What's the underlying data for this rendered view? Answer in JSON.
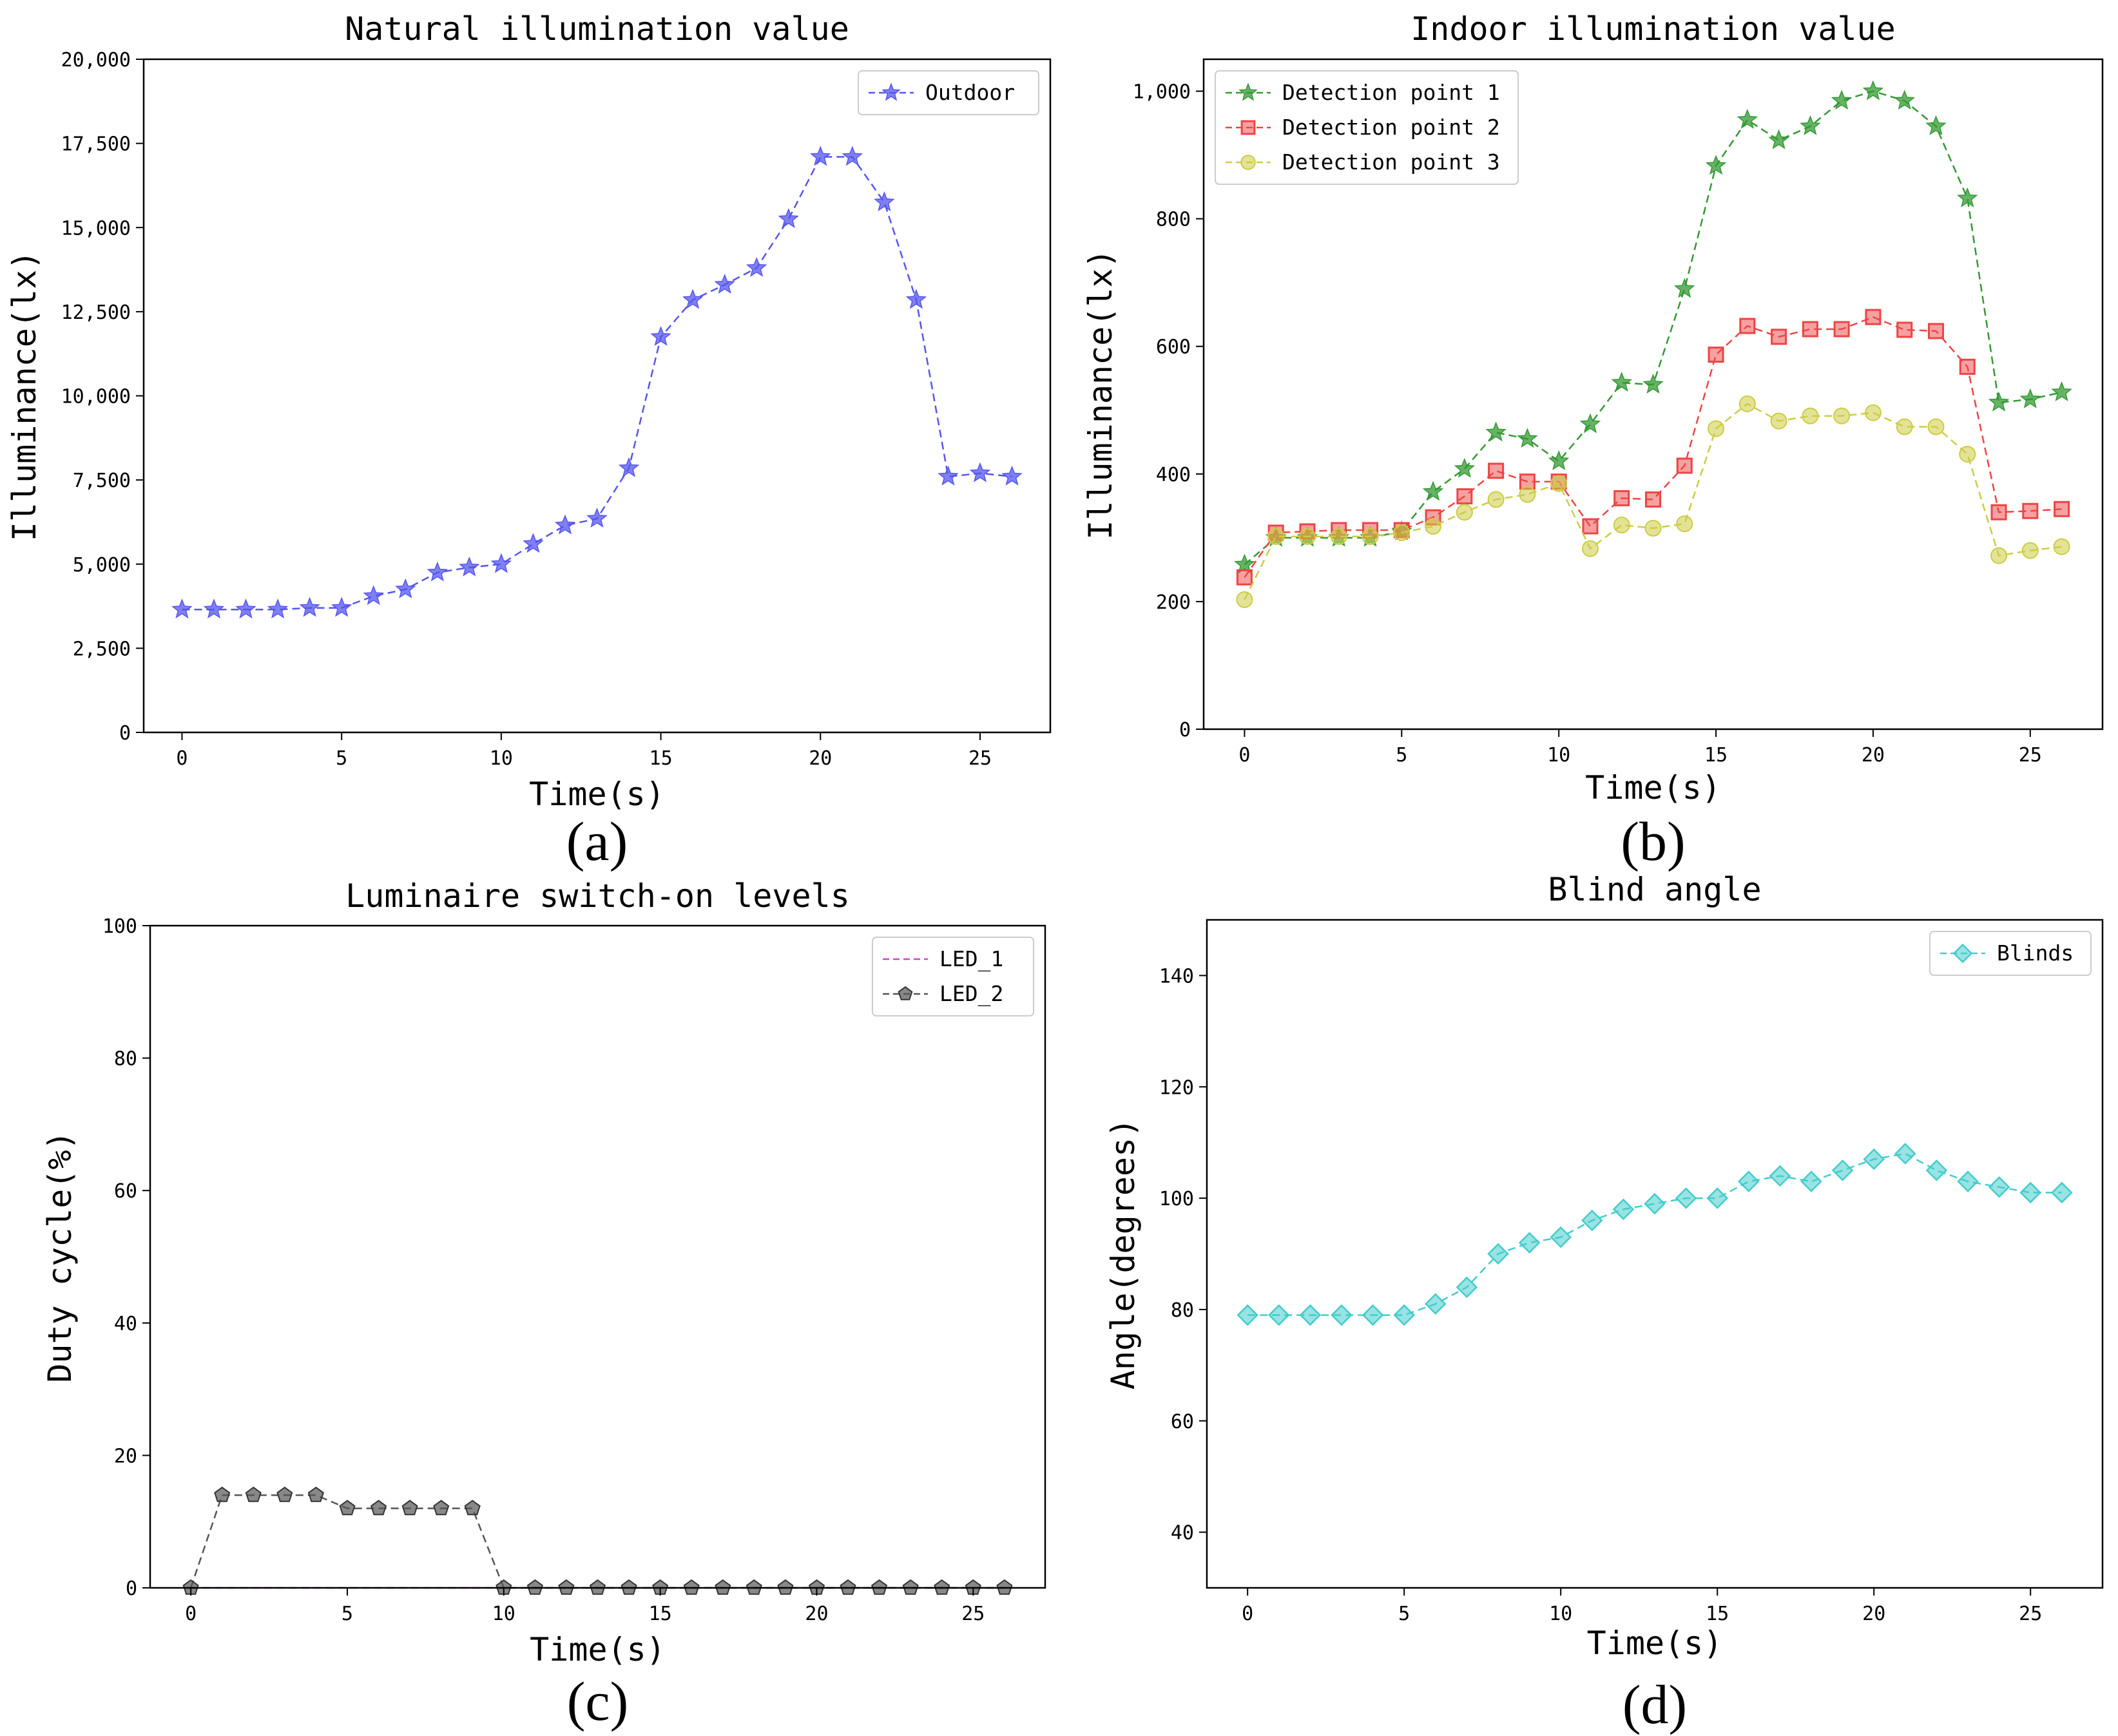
{
  "chart_data": [
    {
      "id": "a",
      "type": "line",
      "title": "Natural illumination value",
      "xlabel": "Time(s)",
      "ylabel": "Illuminance(lx)",
      "panel_label": "(a)",
      "xlim": [
        -1.2,
        27.2
      ],
      "ylim": [
        0,
        20000
      ],
      "xticks": [
        0,
        5,
        10,
        15,
        20,
        25
      ],
      "xtick_labels": [
        "0",
        "5",
        "10",
        "15",
        "20",
        "25"
      ],
      "yticks": [
        0,
        2500,
        5000,
        7500,
        10000,
        12500,
        15000,
        17500,
        20000
      ],
      "ytick_labels": [
        "0",
        "2,500",
        "5,000",
        "7,500",
        "10,000",
        "12,500",
        "15,000",
        "17,500",
        "20,000"
      ],
      "grid": false,
      "legend_position": "top-right",
      "x": [
        0,
        1,
        2,
        3,
        4,
        5,
        6,
        7,
        8,
        9,
        10,
        11,
        12,
        13,
        14,
        15,
        16,
        17,
        18,
        19,
        20,
        21,
        22,
        23,
        24,
        25,
        26
      ],
      "series": [
        {
          "name": "Outdoor",
          "color": "#5555ee",
          "marker": "star",
          "values": [
            3650,
            3650,
            3650,
            3650,
            3700,
            3700,
            4050,
            4250,
            4750,
            4900,
            5000,
            5600,
            6150,
            6350,
            7850,
            11750,
            12850,
            13300,
            13800,
            15250,
            17100,
            17100,
            15750,
            12850,
            7600,
            7700,
            7600
          ]
        }
      ]
    },
    {
      "id": "b",
      "type": "line",
      "title": "Indoor illumination value",
      "xlabel": "Time(s)",
      "ylabel": "Illuminance(lx)",
      "panel_label": "(b)",
      "xlim": [
        -1.3,
        27.3
      ],
      "ylim": [
        0,
        1050
      ],
      "xticks": [
        0,
        5,
        10,
        15,
        20,
        25
      ],
      "xtick_labels": [
        "0",
        "5",
        "10",
        "15",
        "20",
        "25"
      ],
      "yticks": [
        0,
        200,
        400,
        600,
        800,
        1000
      ],
      "ytick_labels": [
        "0",
        "200",
        "400",
        "600",
        "800",
        "1,000"
      ],
      "grid": false,
      "legend_position": "top-left",
      "x": [
        0,
        1,
        2,
        3,
        4,
        5,
        6,
        7,
        8,
        9,
        10,
        11,
        12,
        13,
        14,
        15,
        16,
        17,
        18,
        19,
        20,
        21,
        22,
        23,
        24,
        25,
        26
      ],
      "series": [
        {
          "name": "Detection point 1",
          "color": "#339933",
          "marker": "star",
          "values": [
            258,
            300,
            300,
            300,
            300,
            310,
            372,
            408,
            465,
            455,
            420,
            478,
            543,
            540,
            690,
            883,
            955,
            923,
            945,
            985,
            1000,
            985,
            945,
            832,
            512,
            517,
            528
          ]
        },
        {
          "name": "Detection point 2",
          "color": "#ee4444",
          "marker": "square",
          "values": [
            238,
            308,
            310,
            312,
            312,
            312,
            332,
            365,
            405,
            388,
            388,
            318,
            362,
            360,
            413,
            587,
            632,
            615,
            627,
            627,
            646,
            626,
            624,
            568,
            340,
            342,
            345
          ]
        },
        {
          "name": "Detection point 3",
          "color": "#cccc44",
          "marker": "circle",
          "values": [
            203,
            302,
            302,
            302,
            302,
            308,
            318,
            340,
            360,
            368,
            385,
            283,
            320,
            315,
            322,
            471,
            510,
            483,
            491,
            491,
            496,
            474,
            474,
            431,
            272,
            280,
            286
          ]
        }
      ]
    },
    {
      "id": "c",
      "type": "line",
      "title": "Luminaire switch-on levels",
      "xlabel": "Time(s)",
      "ylabel": "Duty cycle(%)",
      "panel_label": "(c)",
      "xlim": [
        -1.3,
        27.3
      ],
      "ylim": [
        0,
        100
      ],
      "xticks": [
        0,
        5,
        10,
        15,
        20,
        25
      ],
      "xtick_labels": [
        "0",
        "5",
        "10",
        "15",
        "20",
        "25"
      ],
      "yticks": [
        0,
        20,
        40,
        60,
        80,
        100
      ],
      "ytick_labels": [
        "0",
        "20",
        "40",
        "60",
        "80",
        "100"
      ],
      "grid": false,
      "legend_position": "top-right",
      "x": [
        0,
        1,
        2,
        3,
        4,
        5,
        6,
        7,
        8,
        9,
        10,
        11,
        12,
        13,
        14,
        15,
        16,
        17,
        18,
        19,
        20,
        21,
        22,
        23,
        24,
        25,
        26
      ],
      "series": [
        {
          "name": "LED_1",
          "color": "#cc44cc",
          "marker": "none",
          "values": [
            0,
            0,
            0,
            0,
            0,
            0,
            0,
            0,
            0,
            0,
            0,
            0,
            0,
            0,
            0,
            0,
            0,
            0,
            0,
            0,
            0,
            0,
            0,
            0,
            0,
            0,
            0
          ]
        },
        {
          "name": "LED_2",
          "color": "#555555",
          "marker": "pentagon",
          "values": [
            0,
            14,
            14,
            14,
            14,
            12,
            12,
            12,
            12,
            12,
            0,
            0,
            0,
            0,
            0,
            0,
            0,
            0,
            0,
            0,
            0,
            0,
            0,
            0,
            0,
            0,
            0
          ]
        }
      ]
    },
    {
      "id": "d",
      "type": "line",
      "title": "Blind angle",
      "xlabel": "Time(s)",
      "ylabel": "Angle(degrees)",
      "panel_label": "(d)",
      "xlim": [
        -1.3,
        27.3
      ],
      "ylim": [
        30,
        150
      ],
      "xticks": [
        0,
        5,
        10,
        15,
        20,
        25
      ],
      "xtick_labels": [
        "0",
        "5",
        "10",
        "15",
        "20",
        "25"
      ],
      "yticks": [
        40,
        60,
        80,
        100,
        120,
        140
      ],
      "ytick_labels": [
        "40",
        "60",
        "80",
        "100",
        "120",
        "140"
      ],
      "grid": false,
      "legend_position": "top-right",
      "x": [
        0,
        1,
        2,
        3,
        4,
        5,
        6,
        7,
        8,
        9,
        10,
        11,
        12,
        13,
        14,
        15,
        16,
        17,
        18,
        19,
        20,
        21,
        22,
        23,
        24,
        25,
        26
      ],
      "series": [
        {
          "name": "Blinds",
          "color": "#44cccc",
          "marker": "diamond",
          "values": [
            79,
            79,
            79,
            79,
            79,
            79,
            81,
            84,
            90,
            92,
            93,
            96,
            98,
            99,
            100,
            100,
            103,
            104,
            103,
            105,
            107,
            108,
            105,
            103,
            102,
            101,
            101
          ]
        }
      ]
    }
  ]
}
